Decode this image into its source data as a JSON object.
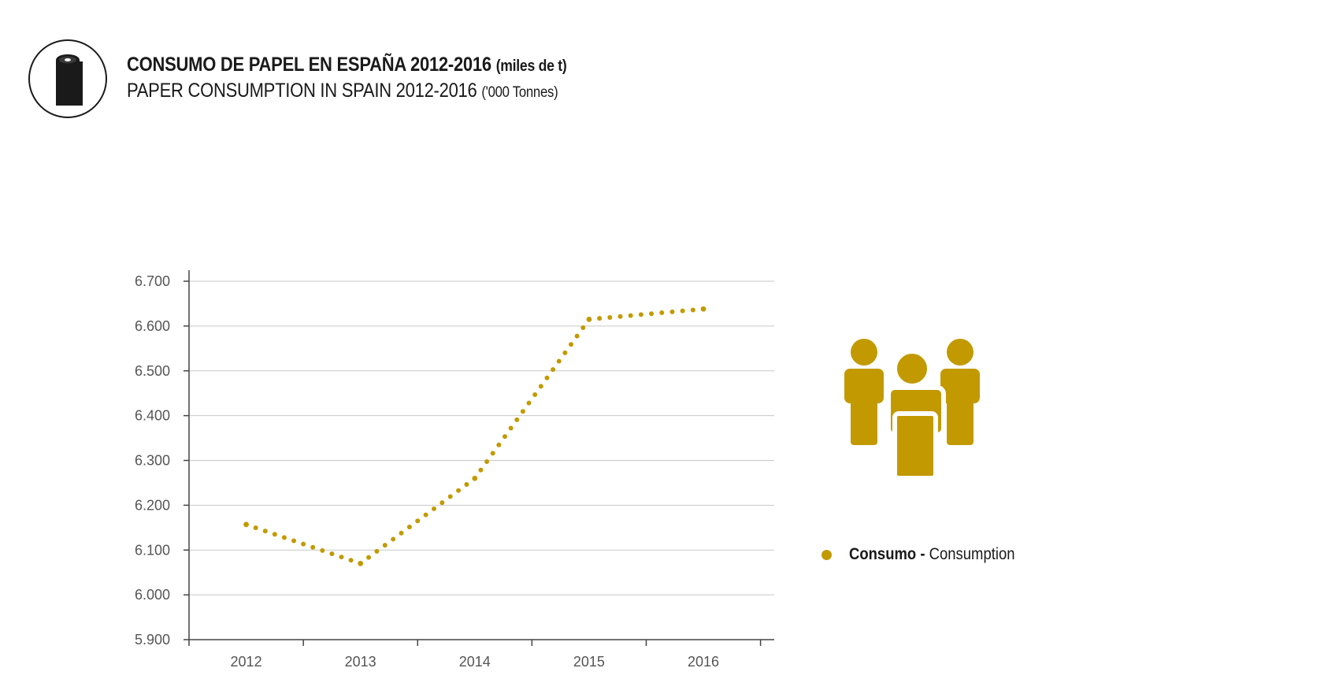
{
  "header": {
    "title_es": "CONSUMO DE PAPEL EN ESPAÑA 2012-2016",
    "unit_es": "(miles de t)",
    "title_en": "PAPER CONSUMPTION IN SPAIN 2012-2016",
    "unit_en": "('000 Tonnes)",
    "icon": "paper-roll-icon"
  },
  "legend": {
    "label_es": "Consumo",
    "separator": " - ",
    "label_en": "Consumption",
    "icon": "people-group-icon"
  },
  "colors": {
    "series": "#c29a00",
    "grid": "#c8c8c8",
    "axis": "#444444",
    "tick_text": "#555555"
  },
  "chart_data": {
    "type": "line",
    "style": "dotted",
    "categories": [
      "2012",
      "2013",
      "2014",
      "2015",
      "2016"
    ],
    "series": [
      {
        "name": "Consumo - Consumption",
        "values": [
          6157,
          6070,
          6260,
          6615,
          6638
        ]
      }
    ],
    "ylim": [
      5900,
      6700
    ],
    "yticks": [
      5900,
      6000,
      6100,
      6200,
      6300,
      6400,
      6500,
      6600,
      6700
    ],
    "ytick_labels": [
      "5.900",
      "6.000",
      "6.100",
      "6.200",
      "6.300",
      "6.400",
      "6.500",
      "6.600",
      "6.700"
    ],
    "grid": true,
    "legend_position": "right"
  }
}
